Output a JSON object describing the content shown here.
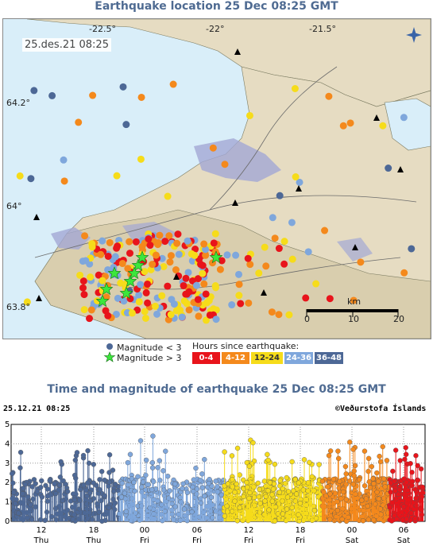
{
  "map_title": "Earthquake location   25 Dec 08:25 GMT",
  "map_timestamp": "25.des.21  08:25",
  "map_labels": {
    "lon1": "-22.5°",
    "lon2": "-22°",
    "lon3": "-21.5°",
    "lat1": "64.2°",
    "lat2": "64°",
    "lat3": "63.8°"
  },
  "scale": {
    "unit": "km",
    "t0": "0",
    "t1": "10",
    "t2": "20"
  },
  "legend": {
    "mag_small": "Magnitude < 3",
    "mag_large": "Magnitude > 3",
    "hours_title": "Hours since earthquake:",
    "bins": [
      {
        "label": "0-4",
        "color": "#e8141b"
      },
      {
        "label": "4-12",
        "color": "#f4891c"
      },
      {
        "label": "12-24",
        "color": "#f6dc1a"
      },
      {
        "label": "24-36",
        "color": "#7fa7dc"
      },
      {
        "label": "36-48",
        "color": "#4d6896"
      }
    ]
  },
  "chart_title": "Time and magnitude of earthquake   25 Dec 08:25 GMT",
  "chart_timestamp": "25.12.21 08:25",
  "chart_credit": "©Veðurstofa Íslands",
  "chart_data": {
    "type": "scatter",
    "ylim": [
      0,
      5
    ],
    "y_ticks": [
      "0",
      "1",
      "2",
      "3",
      "4",
      "5"
    ],
    "x_ticks": [
      {
        "hour": "12",
        "day": "Thu"
      },
      {
        "hour": "18",
        "day": "Thu"
      },
      {
        "hour": "00",
        "day": "Fri"
      },
      {
        "hour": "06",
        "day": "Fri"
      },
      {
        "hour": "12",
        "day": "Fri"
      },
      {
        "hour": "18",
        "day": "Fri"
      },
      {
        "hour": "00",
        "day": "Sat"
      },
      {
        "hour": "06",
        "day": "Sat"
      }
    ],
    "series": [
      {
        "color": "#4d6896",
        "note": "36-48 h"
      },
      {
        "color": "#7fa7dc",
        "note": "24-36 h"
      },
      {
        "color": "#f6dc1a",
        "note": "12-24 h"
      },
      {
        "color": "#f4891c",
        "note": "4-12 h"
      },
      {
        "color": "#e8141b",
        "note": "0-4 h"
      }
    ]
  }
}
